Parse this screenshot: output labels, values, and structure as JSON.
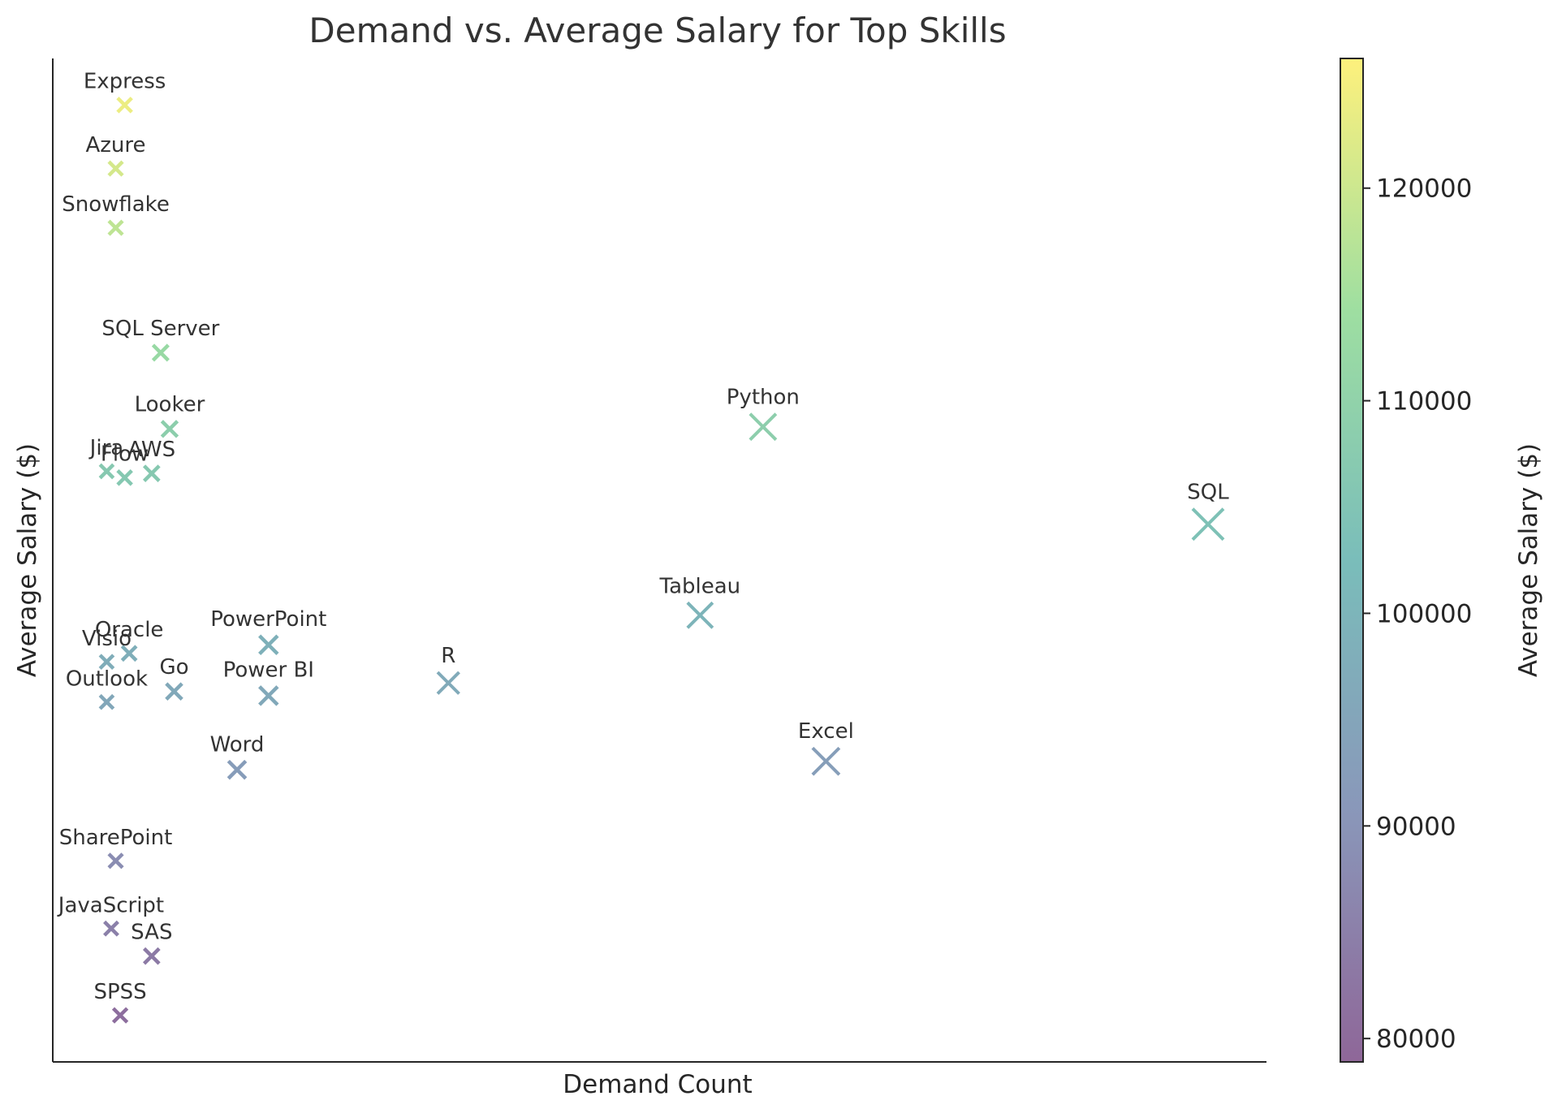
{
  "chart_data": {
    "type": "scatter",
    "title": "Demand vs. Average Salary for Top Skills",
    "xlabel": "Demand Count",
    "ylabel": "Average Salary ($)",
    "x_ticks_visible": false,
    "y_ticks_visible": false,
    "marker": "x",
    "marker_size_encodes": "Demand Count",
    "color_encodes": "Average Salary ($)",
    "colormap": "viridis",
    "alpha": 0.6,
    "xlim": [
      2,
      272
    ],
    "ylim": [
      78800,
      126200
    ],
    "points": [
      {
        "label": "Express",
        "demand": 18,
        "salary": 124000
      },
      {
        "label": "Azure",
        "demand": 16,
        "salary": 121000
      },
      {
        "label": "Snowflake",
        "demand": 16,
        "salary": 118200
      },
      {
        "label": "SQL Server",
        "demand": 26,
        "salary": 112300
      },
      {
        "label": "Looker",
        "demand": 28,
        "salary": 108700
      },
      {
        "label": "Jira",
        "demand": 14,
        "salary": 106700
      },
      {
        "label": "Flow",
        "demand": 18,
        "salary": 106400
      },
      {
        "label": "AWS",
        "demand": 24,
        "salary": 106600
      },
      {
        "label": "Python",
        "demand": 160,
        "salary": 108800
      },
      {
        "label": "SQL",
        "demand": 259,
        "salary": 104200
      },
      {
        "label": "Tableau",
        "demand": 146,
        "salary": 99900
      },
      {
        "label": "PowerPoint",
        "demand": 50,
        "salary": 98500
      },
      {
        "label": "Oracle",
        "demand": 19,
        "salary": 98100
      },
      {
        "label": "Visio",
        "demand": 14,
        "salary": 97700
      },
      {
        "label": "Go",
        "demand": 29,
        "salary": 96300
      },
      {
        "label": "Outlook",
        "demand": 14,
        "salary": 95800
      },
      {
        "label": "Power BI",
        "demand": 50,
        "salary": 96100
      },
      {
        "label": "R",
        "demand": 90,
        "salary": 96700
      },
      {
        "label": "Word",
        "demand": 43,
        "salary": 92600
      },
      {
        "label": "Excel",
        "demand": 174,
        "salary": 93000
      },
      {
        "label": "SharePoint",
        "demand": 16,
        "salary": 88300
      },
      {
        "label": "JavaScript",
        "demand": 15,
        "salary": 85100
      },
      {
        "label": "SAS",
        "demand": 24,
        "salary": 83800
      },
      {
        "label": "SPSS",
        "demand": 17,
        "salary": 81000
      }
    ],
    "colorbar": {
      "label": "Average Salary ($)",
      "min": 78900,
      "max": 126100,
      "ticks": [
        80000,
        90000,
        100000,
        110000,
        120000
      ],
      "tick_labels": [
        "80000",
        "90000",
        "100000",
        "110000",
        "120000"
      ]
    }
  }
}
